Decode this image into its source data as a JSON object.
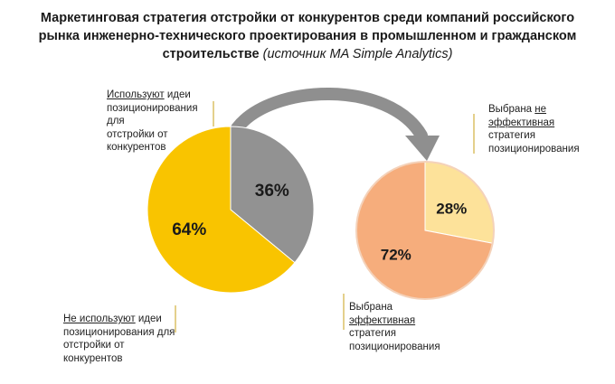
{
  "title": {
    "main": "Маркетинговая стратегия отстройки от конкурентов среди компаний российского рынка инженерно-технического проектирования в промышленном и гражданском строительстве",
    "source": "(источник MA Simple Analytics)"
  },
  "chart_data": [
    {
      "type": "pie",
      "slices": [
        {
          "label": "Используют идеи позиционирования для отстройки от конкурентов",
          "value": 36,
          "value_label": "36%",
          "color": "#929292"
        },
        {
          "label": "Не используют идеи позиционирования для отстройки от конкурентов",
          "value": 64,
          "value_label": "64%",
          "color": "#f9c400"
        }
      ]
    },
    {
      "type": "pie",
      "slices": [
        {
          "label": "Выбрана не эффективная стратегия позиционирования",
          "value": 28,
          "value_label": "28%",
          "color": "#fde29a"
        },
        {
          "label": "Выбрана эффективная стратегия позиционирования",
          "value": 72,
          "value_label": "72%",
          "color": "#f6ad7c"
        }
      ]
    }
  ],
  "annotations": {
    "left_top": {
      "underlined": "Используют",
      "rest1": " идеи",
      "line2": "позиционирования для",
      "line3": "отстройки от конкурентов"
    },
    "left_bottom": {
      "underlined": "Не используют",
      "rest1": " идеи",
      "line2": "позиционирования для",
      "line3": "отстройки от конкурентов"
    },
    "right_top": {
      "line1a": "Выбрана ",
      "line1u": "не",
      "line2u": "эффективная",
      "line3": "стратегия",
      "line4": "позиционирования"
    },
    "right_bottom": {
      "line1": "Выбрана",
      "line2u": "эффективная",
      "line3": "стратегия",
      "line4": "позиционирования"
    }
  },
  "colors": {
    "arrow": "#8a8a8a",
    "leader": "#c9a11a"
  }
}
